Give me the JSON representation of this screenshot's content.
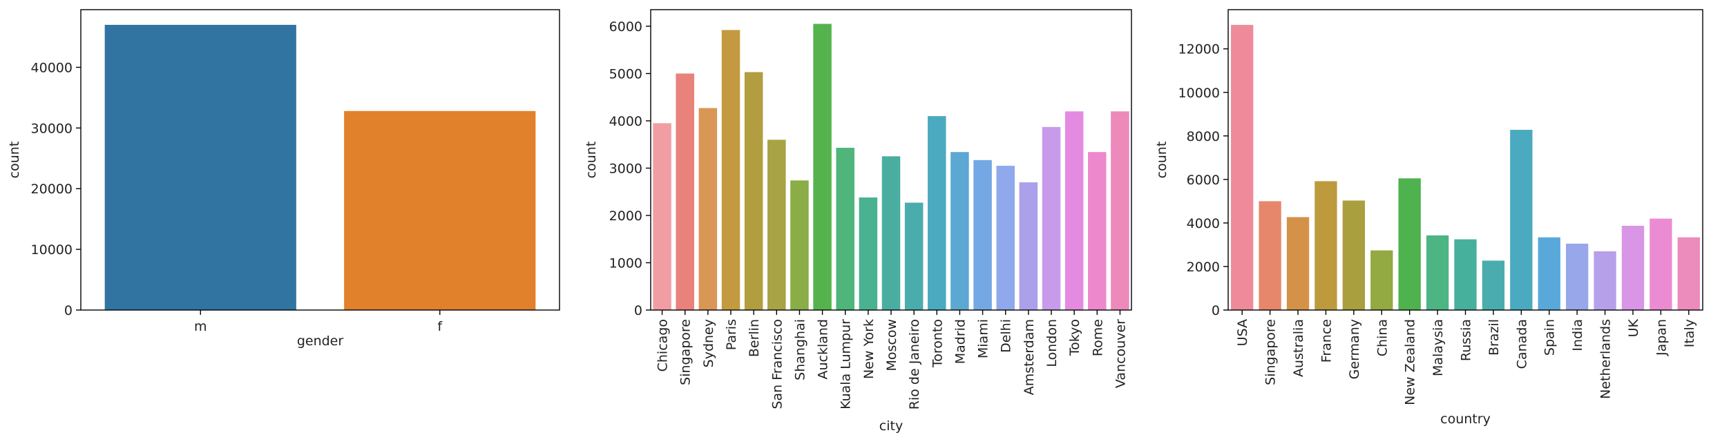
{
  "chart_data": [
    {
      "type": "bar",
      "xlabel": "gender",
      "ylabel": "count",
      "categories": [
        "m",
        "f"
      ],
      "values": [
        47000,
        32800
      ],
      "ylim": [
        0,
        49500
      ],
      "yticks": [
        0,
        10000,
        20000,
        30000,
        40000
      ],
      "rotate_labels": false,
      "colors": [
        "#3274a1",
        "#e1812c"
      ]
    },
    {
      "type": "bar",
      "xlabel": "city",
      "ylabel": "count",
      "categories": [
        "Chicago",
        "Singapore",
        "Sydney",
        "Paris",
        "Berlin",
        "San Francisco",
        "Shanghai",
        "Auckland",
        "Kuala Lumpur",
        "New York",
        "Moscow",
        "Rio de Janeiro",
        "Toronto",
        "Madrid",
        "Miami",
        "Delhi",
        "Amsterdam",
        "London",
        "Tokyo",
        "Rome",
        "Vancouver"
      ],
      "values": [
        3950,
        5000,
        4270,
        5920,
        5030,
        3600,
        2740,
        6050,
        3430,
        2380,
        3250,
        2270,
        4100,
        3340,
        3170,
        3050,
        2700,
        3870,
        4200,
        3340,
        4200
      ],
      "ylim": [
        0,
        6350
      ],
      "yticks": [
        0,
        1000,
        2000,
        3000,
        4000,
        5000,
        6000
      ],
      "rotate_labels": true,
      "colors": [
        "#f09ea4",
        "#e8827b",
        "#d99654",
        "#c49a40",
        "#b29e40",
        "#a8a344",
        "#8bad45",
        "#55b34e",
        "#4fb57a",
        "#4ab291",
        "#49aea0",
        "#4bacad",
        "#4caac0",
        "#5ba8d3",
        "#74a8e4",
        "#8fa9ec",
        "#aba0ea",
        "#c79bea",
        "#e48be1",
        "#ed88cc",
        "#ed89bb"
      ]
    },
    {
      "type": "bar",
      "xlabel": "country",
      "ylabel": "count",
      "categories": [
        "USA",
        "Singapore",
        "Australia",
        "France",
        "Germany",
        "China",
        "New Zealand",
        "Malaysia",
        "Russia",
        "Brazil",
        "Canada",
        "Spain",
        "India",
        "Netherlands",
        "UK",
        "Japan",
        "Italy"
      ],
      "values": [
        13100,
        5000,
        4270,
        5920,
        5030,
        2740,
        6050,
        3430,
        3250,
        2270,
        8280,
        3340,
        3050,
        2700,
        3870,
        4200,
        3340
      ],
      "ylim": [
        0,
        13800
      ],
      "yticks": [
        0,
        2000,
        4000,
        6000,
        8000,
        10000,
        12000
      ],
      "rotate_labels": true,
      "colors": [
        "#ef8a9a",
        "#e6876c",
        "#d49248",
        "#bd9a3d",
        "#a99f3e",
        "#93a941",
        "#4eb24e",
        "#4db484",
        "#47b09d",
        "#4aacad",
        "#4aaabf",
        "#58a9da",
        "#97a7e9",
        "#b6a0ea",
        "#d995e6",
        "#eb8bd2",
        "#ec8cbc"
      ]
    }
  ]
}
